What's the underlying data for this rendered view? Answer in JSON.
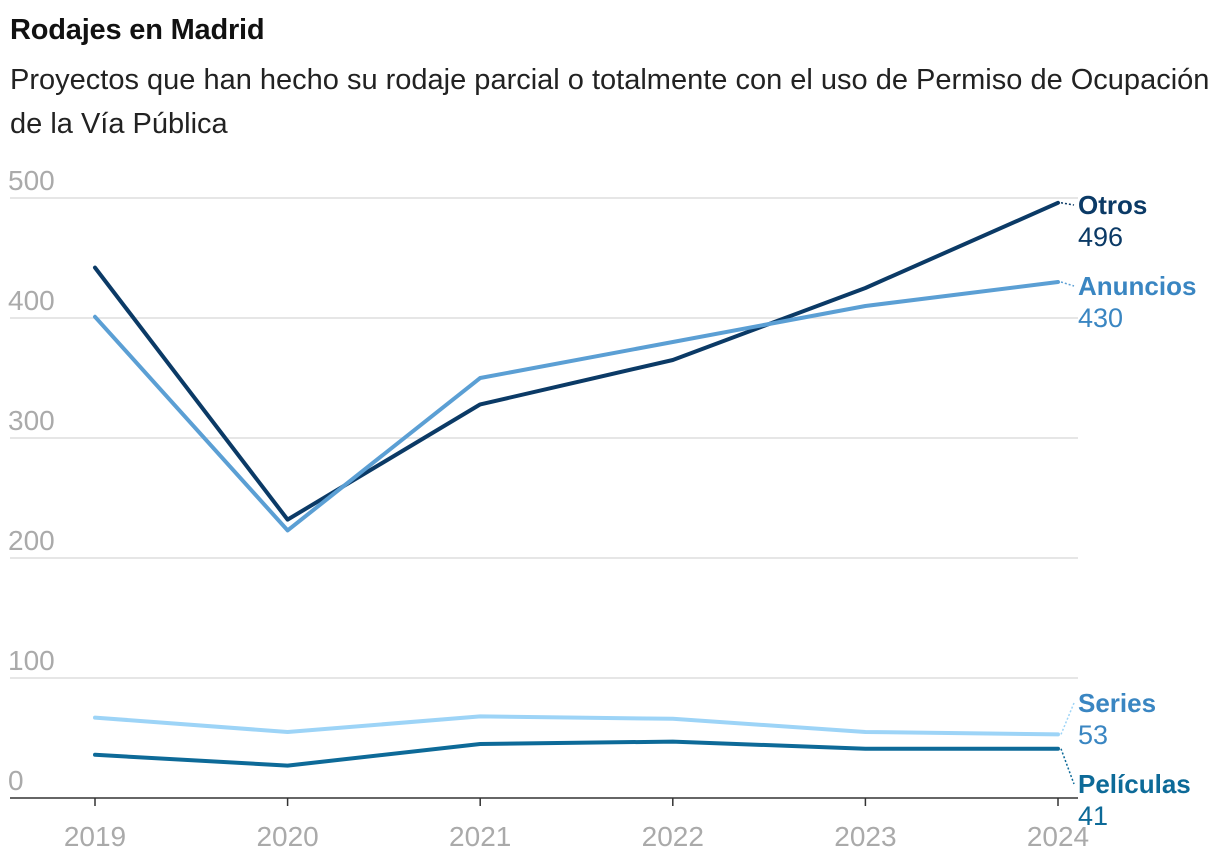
{
  "chart_data": {
    "type": "line",
    "title": "Rodajes en Madrid",
    "subtitle": "Proyectos que han hecho su rodaje parcial o totalmente con el uso de Permiso de Ocupación de la Vía Pública",
    "x": [
      "2019",
      "2020",
      "2021",
      "2022",
      "2023",
      "2024"
    ],
    "y_ticks": [
      "500",
      "400",
      "300",
      "200",
      "100",
      "0"
    ],
    "ylim": [
      0,
      500
    ],
    "grid": true,
    "series": [
      {
        "name": "Otros",
        "end_label": "496",
        "color": "#0b3a66",
        "values": [
          442,
          232,
          328,
          365,
          425,
          496
        ]
      },
      {
        "name": "Anuncios",
        "end_label": "430",
        "color": "#5b9fd4",
        "values": [
          401,
          223,
          350,
          380,
          410,
          430
        ]
      },
      {
        "name": "Series",
        "end_label": "53",
        "color": "#9dd4f7",
        "values": [
          67,
          55,
          68,
          66,
          55,
          53
        ]
      },
      {
        "name": "Películas",
        "end_label": "41",
        "color": "#0d6a98",
        "values": [
          36,
          27,
          45,
          47,
          41,
          41
        ]
      }
    ],
    "label_colors": {
      "Otros": "#0b3a66",
      "Anuncios": "#3a86c2",
      "Series": "#3a86c2",
      "Películas": "#0d6a98"
    }
  }
}
